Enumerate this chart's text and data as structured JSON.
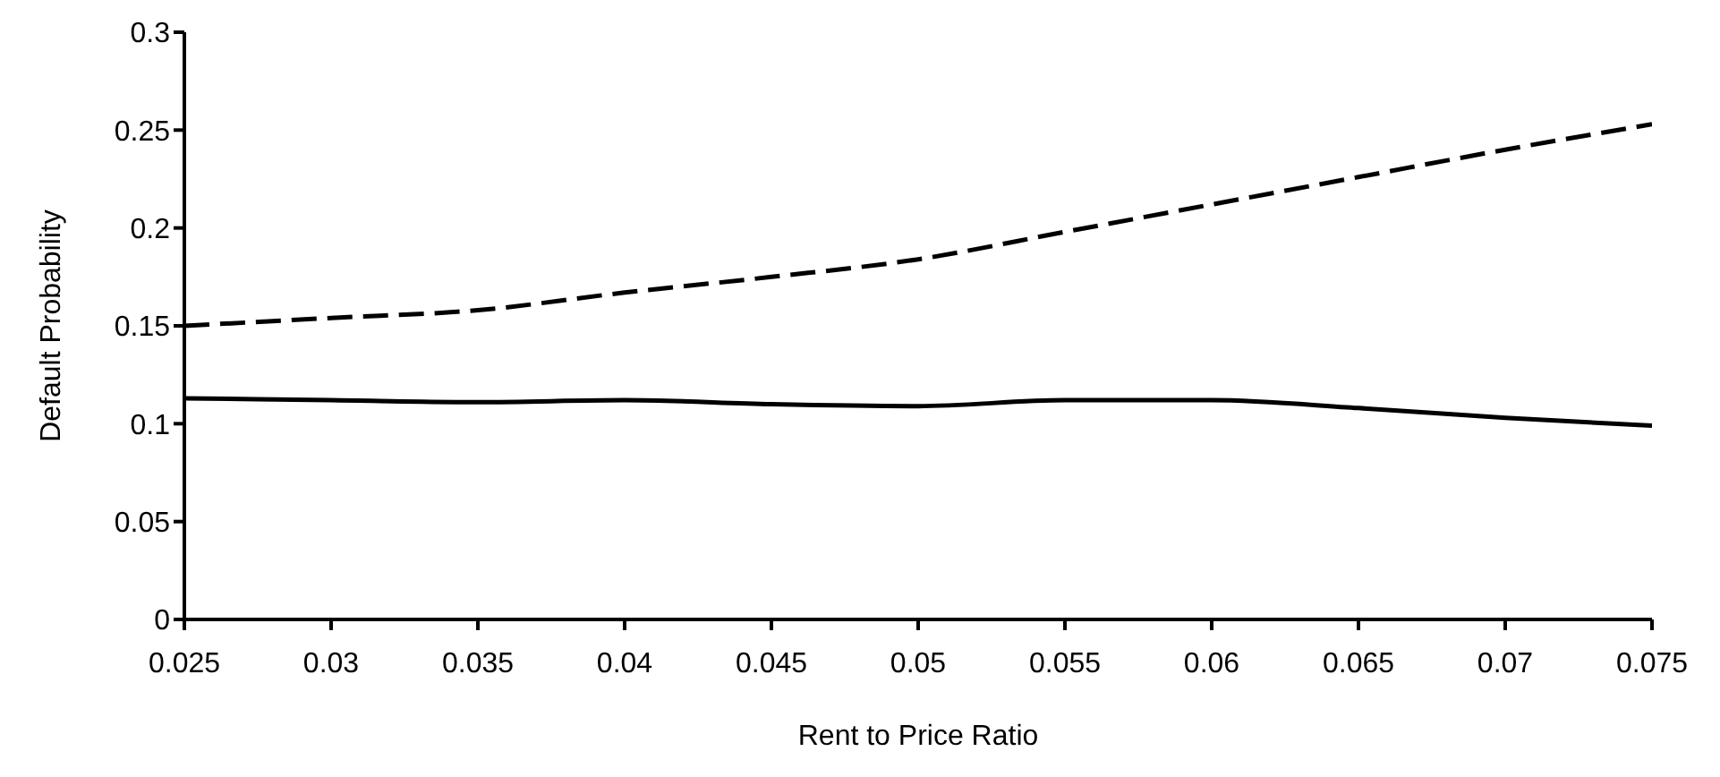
{
  "chart_data": {
    "type": "line",
    "xlabel": "Rent to Price Ratio",
    "ylabel": "Default Probability",
    "x": [
      0.025,
      0.03,
      0.035,
      0.04,
      0.045,
      0.05,
      0.055,
      0.06,
      0.065,
      0.07,
      0.075
    ],
    "series": [
      {
        "color": "#000000",
        "line_style": "dashed",
        "values": [
          0.15,
          0.154,
          0.158,
          0.167,
          0.175,
          0.184,
          0.198,
          0.212,
          0.226,
          0.24,
          0.253
        ]
      },
      {
        "color": "#000000",
        "line_style": "solid",
        "values": [
          0.113,
          0.112,
          0.111,
          0.112,
          0.11,
          0.109,
          0.112,
          0.112,
          0.108,
          0.103,
          0.099
        ]
      }
    ],
    "xlim": [
      0.025,
      0.075
    ],
    "xticks": [
      0.025,
      0.03,
      0.035,
      0.04,
      0.045,
      0.05,
      0.055,
      0.06,
      0.065,
      0.07,
      0.075
    ],
    "ylim": [
      0,
      0.3
    ],
    "yticks": [
      0,
      0.05,
      0.1,
      0.15,
      0.2,
      0.25,
      0.3
    ],
    "grid": false,
    "legend": false,
    "marker": "none"
  }
}
